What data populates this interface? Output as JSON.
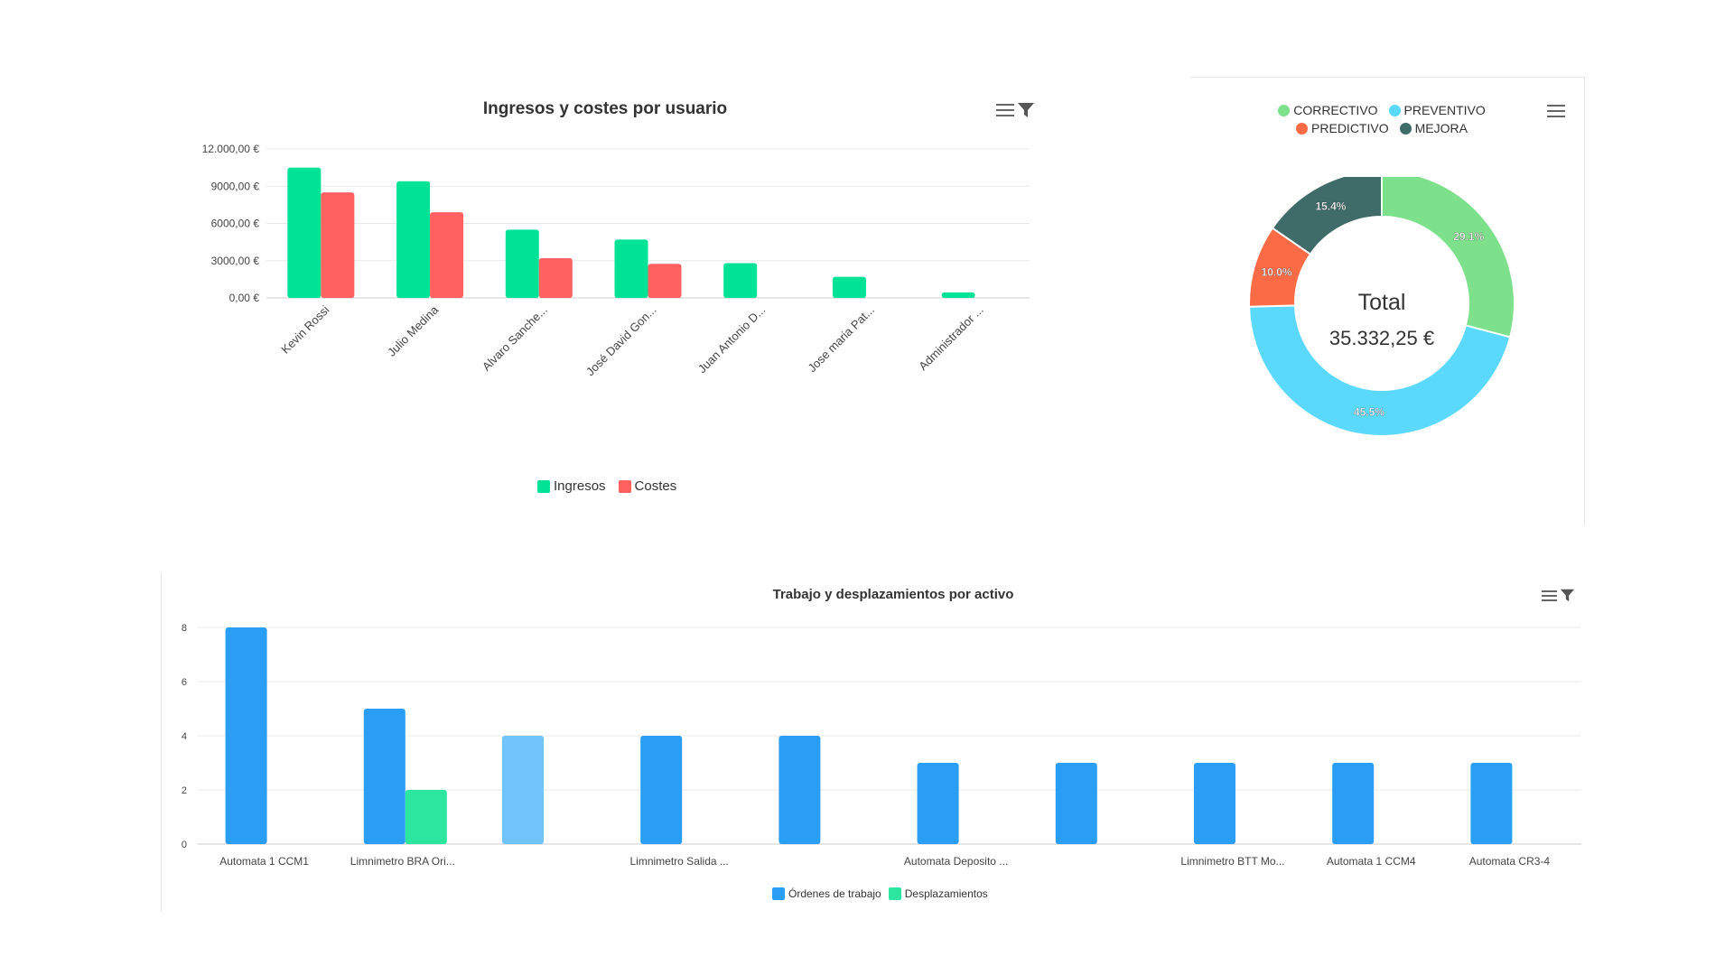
{
  "chart_data": [
    {
      "type": "bar",
      "title": "Ingresos y costes por usuario",
      "categories": [
        "Kevin Rossi",
        "Julio Medina",
        "Alvaro Sanche...",
        "José David Gon...",
        "Juan Antonio D...",
        "Jose maria Pat...",
        "Administrador ..."
      ],
      "series": [
        {
          "name": "Ingresos",
          "color": "#00e396",
          "values": [
            10500,
            9400,
            5500,
            4700,
            2800,
            1700,
            450
          ]
        },
        {
          "name": "Costes",
          "color": "#ff6060",
          "values": [
            8500,
            6900,
            3200,
            2750,
            null,
            null,
            null
          ]
        }
      ],
      "yticks": [
        "0,00 €",
        "3000,00 €",
        "6000,00 €",
        "9000,00 €",
        "12.000,00 €"
      ],
      "ylim": [
        0,
        12000
      ],
      "grid": true,
      "legend_position": "bottom"
    },
    {
      "type": "pie",
      "donut": true,
      "labels": [
        "CORRECTIVO",
        "PREVENTIVO",
        "PREDICTIVO",
        "MEJORA"
      ],
      "values": [
        29.1,
        45.5,
        10.0,
        15.4
      ],
      "value_labels": [
        "29.1%",
        "45.5%",
        "10.0%",
        "15.4%"
      ],
      "colors": [
        "#7de08a",
        "#5bd9fd",
        "#fb6b45",
        "#3f6b69"
      ],
      "center_title": "Total",
      "center_value": "35.332,25 €",
      "legend_position": "top"
    },
    {
      "type": "bar",
      "title": "Trabajo y desplazamientos por activo",
      "categories": [
        "Automata 1 CCM1",
        "Limnimetro BRA Ori...",
        "",
        "Limnimetro Salida ...",
        "",
        "Automata Deposito ...",
        "",
        "Limnimetro BTT Mo...",
        "Automata 1 CCM4",
        "Automata CR3-4"
      ],
      "series": [
        {
          "name": "Órdenes de trabajo",
          "color": "#2a9df4",
          "values": [
            8,
            5,
            4,
            4,
            4,
            3,
            3,
            3,
            3,
            3
          ]
        },
        {
          "name": "Desplazamientos",
          "color": "#2ce6a0",
          "values": [
            null,
            2,
            null,
            null,
            null,
            null,
            null,
            null,
            null,
            null
          ]
        }
      ],
      "highlighted_category_index": 2,
      "highlight_color": "#70c4fb",
      "yticks": [
        "0",
        "2",
        "4",
        "6",
        "8"
      ],
      "ylim": [
        0,
        8
      ],
      "grid": true,
      "legend_position": "bottom"
    }
  ]
}
